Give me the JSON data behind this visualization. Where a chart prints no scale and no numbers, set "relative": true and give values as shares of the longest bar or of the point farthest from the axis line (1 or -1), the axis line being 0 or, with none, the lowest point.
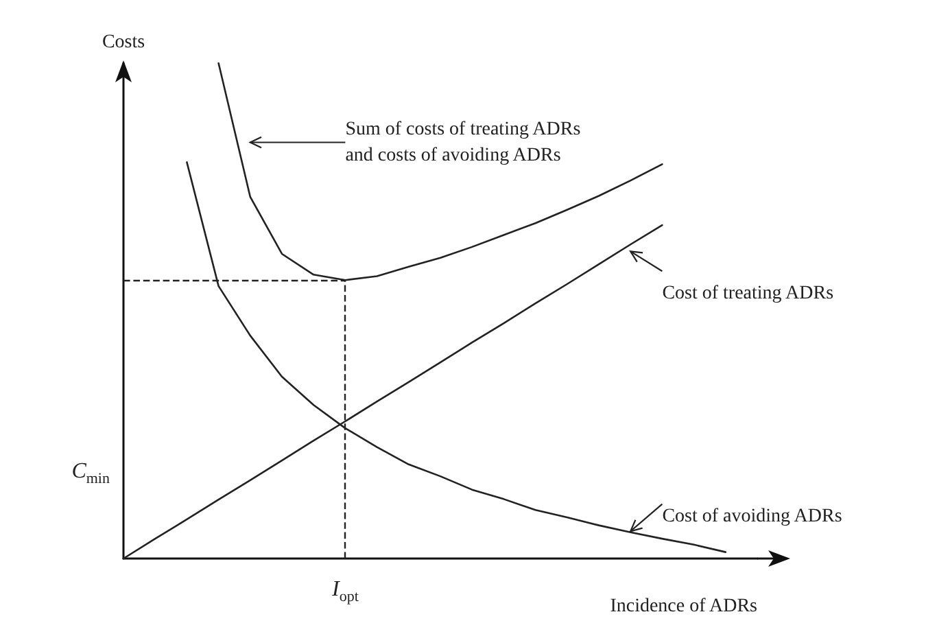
{
  "chart_data": {
    "type": "line",
    "relative": true,
    "legend": "right",
    "xlabel": "Incidence of ADRs",
    "ylabel": "Costs",
    "marker": "none",
    "annotations": [
      "C$_{min}$"
    ],
    "categories": [
      null,
      null,
      null,
      null,
      null,
      null,
      null,
      null,
      null,
      null,
      null,
      null,
      null,
      null,
      null,
      null,
      null,
      null,
      null,
      null,
      null
    ],
    "ref_lines": [
      {
        "axis": "y",
        "value": 0.562,
        "color": "#222222",
        "line_style": "dashed"
      },
      {
        "axis": "x",
        "label": "I$_{opt}$",
        "color": "#222222",
        "line_style": "dashed"
      }
    ],
    "series": [
      {
        "name": "Sum of costs of treating ADRs\nand costs of avoiding ADRs",
        "color": "#222222",
        "values": [
          null,
          null,
          null,
          1,
          0.73,
          0.615,
          0.573,
          0.562,
          0.57,
          0.589,
          0.607,
          0.629,
          0.653,
          0.677,
          0.704,
          0.732,
          0.763,
          0.796,
          null,
          null,
          null
        ]
      },
      {
        "name": "Cost of treating ADRs",
        "color": "#222222",
        "values": [
          0,
          0.04,
          0.079,
          0.119,
          0.158,
          0.198,
          0.238,
          0.277,
          0.317,
          0.356,
          0.396,
          0.436,
          0.475,
          0.515,
          0.554,
          0.594,
          0.634,
          0.673,
          null,
          null,
          null
        ]
      },
      {
        "name": "Cost of avoiding ADRs",
        "color": "#222222",
        "values": [
          null,
          null,
          0.8,
          0.55,
          0.45,
          0.367,
          0.31,
          0.263,
          0.225,
          0.19,
          0.166,
          0.139,
          0.12,
          0.098,
          0.083,
          0.067,
          0.053,
          0.04,
          0.028,
          0.013,
          null
        ]
      }
    ]
  }
}
